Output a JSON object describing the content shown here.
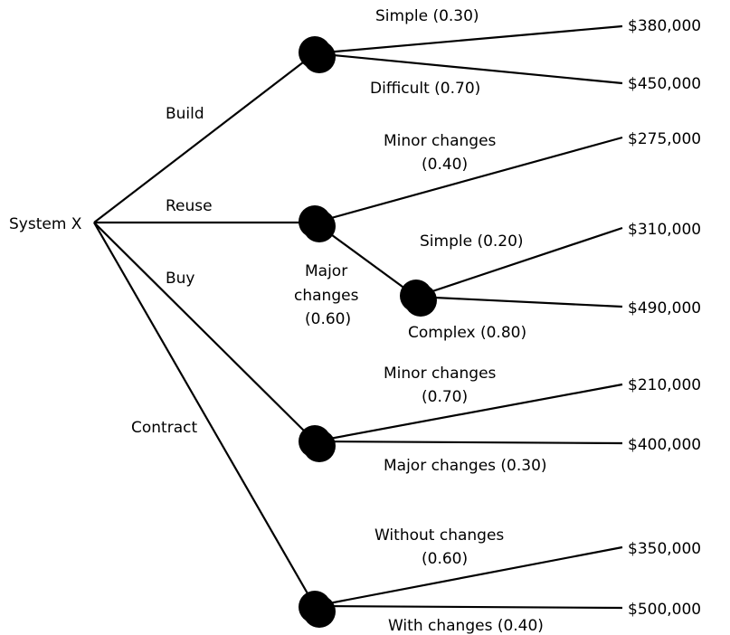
{
  "root": {
    "label": "System X"
  },
  "branches": {
    "build": {
      "label": "Build"
    },
    "reuse": {
      "label": "Reuse"
    },
    "buy": {
      "label": "Buy"
    },
    "contract": {
      "label": "Contract"
    }
  },
  "outcomes": {
    "build_simple": {
      "label": "Simple (0.30)",
      "value": "$380,000"
    },
    "build_difficult": {
      "label": "Difficult (0.70)",
      "value": "$450,000"
    },
    "reuse_minor": {
      "label_line1": "Minor changes",
      "label_line2": "(0.40)",
      "value": "$275,000"
    },
    "reuse_major": {
      "label_line1": "Major",
      "label_line2": "changes",
      "label_line3": "(0.60)"
    },
    "reuse_major_simple": {
      "label": "Simple (0.20)",
      "value": "$310,000"
    },
    "reuse_major_complex": {
      "label": "Complex (0.80)",
      "value": "$490,000"
    },
    "buy_minor": {
      "label_line1": "Minor changes",
      "label_line2": "(0.70)",
      "value": "$210,000"
    },
    "buy_major": {
      "label": "Major changes (0.30)",
      "value": "$400,000"
    },
    "contract_without": {
      "label_line1": "Without changes",
      "label_line2": "(0.60)",
      "value": "$350,000"
    },
    "contract_with": {
      "label": "With changes (0.40)",
      "value": "$500,000"
    }
  }
}
